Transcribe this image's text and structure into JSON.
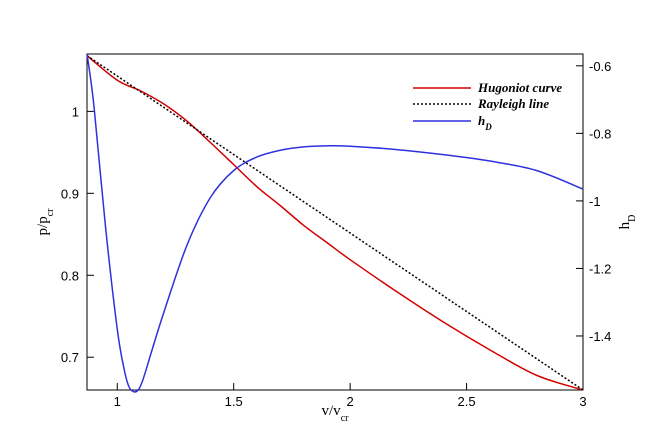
{
  "chart_data": {
    "type": "line",
    "title": "",
    "xlabel": {
      "main": "v/v",
      "sub": "cr"
    },
    "ylabel_left": {
      "main": "p/p",
      "sub": "cr"
    },
    "ylabel_right": {
      "main": "h",
      "sub": "D"
    },
    "xlim": [
      0.87,
      3.0
    ],
    "ylim_left": [
      0.66,
      1.07
    ],
    "ylim_right": [
      -1.56,
      -0.565
    ],
    "x_ticks": [
      1,
      1.5,
      2,
      2.5,
      3
    ],
    "x_tick_labels": [
      "1",
      "1.5",
      "2",
      "2.5",
      "3"
    ],
    "y_left_ticks": [
      0.7,
      0.8,
      0.9,
      1.0
    ],
    "y_left_tick_labels": [
      "0.7",
      "0.8",
      "0.9",
      "1"
    ],
    "y_right_ticks": [
      -1.4,
      -1.2,
      -1.0,
      -0.8,
      -0.6
    ],
    "y_right_tick_labels": [
      "-1.4",
      "-1.2",
      "-1",
      "-0.8",
      "-0.6"
    ],
    "grid": false,
    "legend_position": "top-right",
    "series": [
      {
        "name": "Hugoniot curve",
        "axis": "left",
        "color": "#d40000",
        "style": "solid",
        "x": [
          0.87,
          1.0,
          1.1,
          1.2,
          1.3,
          1.4,
          1.5,
          1.6,
          1.7,
          1.8,
          1.9,
          2.0,
          2.2,
          2.4,
          2.6,
          2.8,
          3.0
        ],
        "y": [
          1.068,
          1.038,
          1.025,
          1.009,
          0.988,
          0.962,
          0.935,
          0.908,
          0.885,
          0.861,
          0.84,
          0.819,
          0.78,
          0.743,
          0.709,
          0.678,
          0.66
        ]
      },
      {
        "name": "Rayleigh line",
        "axis": "left",
        "color": "#000000",
        "style": "dotted",
        "x": [
          0.87,
          3.0
        ],
        "y": [
          1.068,
          0.66
        ]
      },
      {
        "name": "h",
        "name_sub": "D",
        "axis": "right",
        "color": "#3030e0",
        "style": "solid",
        "x": [
          0.87,
          0.9,
          0.95,
          1.0,
          1.03,
          1.05,
          1.07,
          1.09,
          1.11,
          1.15,
          1.2,
          1.3,
          1.4,
          1.5,
          1.6,
          1.7,
          1.8,
          1.9,
          2.0,
          2.2,
          2.4,
          2.6,
          2.8,
          3.0
        ],
        "y": [
          -0.565,
          -0.72,
          -1.08,
          -1.38,
          -1.5,
          -1.55,
          -1.565,
          -1.56,
          -1.53,
          -1.44,
          -1.33,
          -1.13,
          -0.99,
          -0.91,
          -0.87,
          -0.85,
          -0.84,
          -0.837,
          -0.838,
          -0.848,
          -0.863,
          -0.882,
          -0.91,
          -0.965
        ]
      }
    ]
  }
}
